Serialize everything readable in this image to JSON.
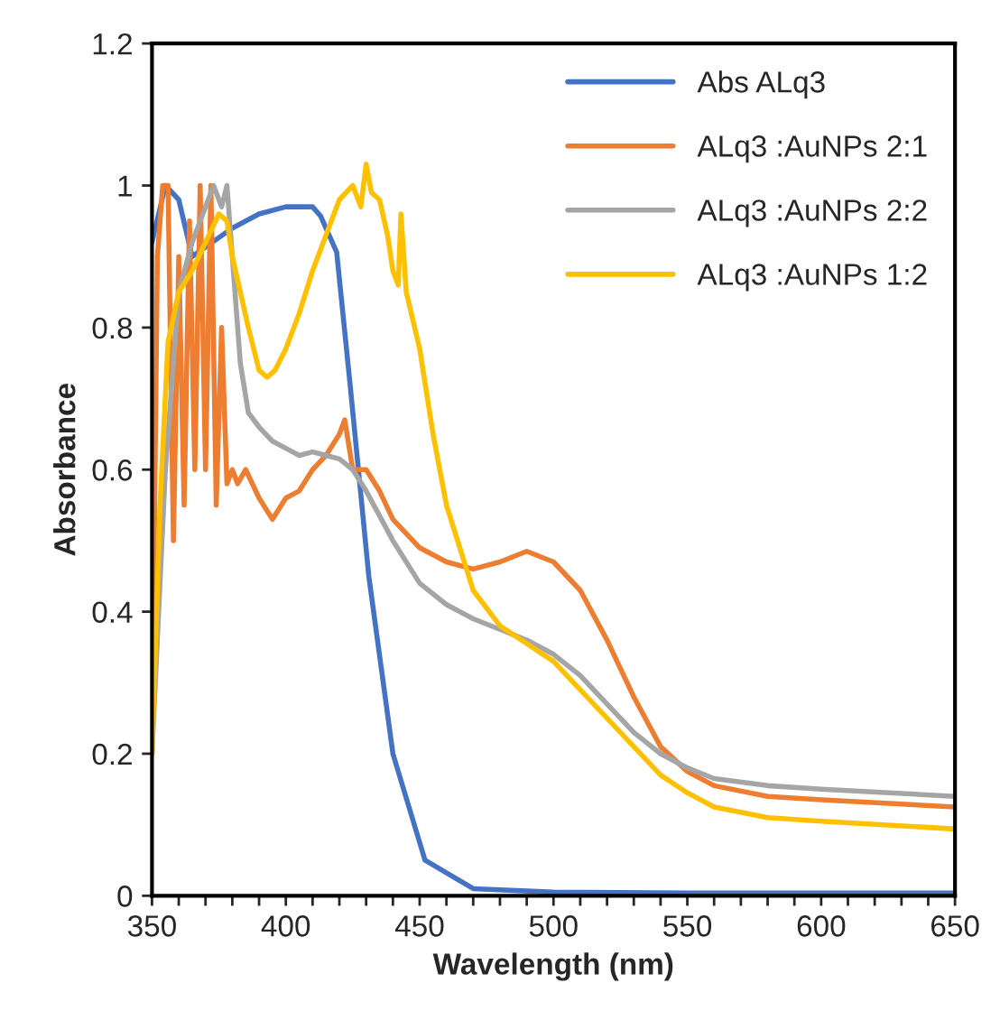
{
  "chart_data": {
    "type": "line",
    "xlabel": "Wavelength (nm)",
    "ylabel": "Absorbance",
    "xlim": [
      350,
      650
    ],
    "ylim": [
      0,
      1.2
    ],
    "xticks": [
      350,
      {
        "value": 360,
        "label": null
      },
      {
        "value": 370,
        "label": null
      },
      {
        "value": 380,
        "label": null
      },
      {
        "value": 390,
        "label": null
      },
      400,
      {
        "value": 410,
        "label": null
      },
      {
        "value": 420,
        "label": null
      },
      {
        "value": 430,
        "label": null
      },
      {
        "value": 440,
        "label": null
      },
      450,
      {
        "value": 460,
        "label": null
      },
      {
        "value": 470,
        "label": null
      },
      {
        "value": 480,
        "label": null
      },
      {
        "value": 490,
        "label": null
      },
      500,
      {
        "value": 510,
        "label": null
      },
      {
        "value": 520,
        "label": null
      },
      {
        "value": 530,
        "label": null
      },
      {
        "value": 540,
        "label": null
      },
      550,
      {
        "value": 560,
        "label": null
      },
      {
        "value": 570,
        "label": null
      },
      {
        "value": 580,
        "label": null
      },
      {
        "value": 590,
        "label": null
      },
      600,
      {
        "value": 610,
        "label": null
      },
      {
        "value": 620,
        "label": null
      },
      {
        "value": 630,
        "label": null
      },
      {
        "value": 640,
        "label": null
      },
      650
    ],
    "yticks": [
      0,
      0.2,
      0.4,
      0.6,
      0.8,
      1,
      1.2
    ],
    "grid": false,
    "legend": "top right",
    "marker": "none",
    "line_style": "solid",
    "series": [
      {
        "name": "Abs ALq3",
        "color": "#4472c4",
        "x": [
          350,
          355,
          360,
          365,
          380,
          390,
          400,
          410,
          413,
          419,
          424,
          431,
          440,
          452,
          470,
          500,
          550,
          600,
          650
        ],
        "values": [
          0.92,
          1.0,
          0.98,
          0.9,
          0.94,
          0.96,
          0.97,
          0.97,
          0.957,
          0.906,
          0.72,
          0.45,
          0.2,
          0.05,
          0.01,
          0.005,
          0.004,
          0.004,
          0.004
        ]
      },
      {
        "name": "ALq3 :AuNPs 2:1",
        "color": "#ed7d31",
        "x": [
          350,
          352,
          354,
          356,
          358,
          360,
          362,
          364,
          366,
          368,
          370,
          372,
          374,
          376,
          378,
          380,
          382,
          385,
          390,
          395,
          400,
          405,
          410,
          415,
          420,
          422,
          425,
          430,
          435,
          440,
          450,
          460,
          470,
          480,
          490,
          500,
          510,
          520,
          530,
          540,
          550,
          560,
          580,
          600,
          650
        ],
        "values": [
          0.2,
          0.9,
          1.0,
          1.0,
          0.5,
          0.9,
          0.55,
          0.95,
          0.6,
          1.0,
          0.6,
          1.0,
          0.55,
          0.8,
          0.58,
          0.6,
          0.58,
          0.6,
          0.56,
          0.53,
          0.56,
          0.57,
          0.6,
          0.62,
          0.65,
          0.67,
          0.6,
          0.6,
          0.57,
          0.53,
          0.49,
          0.47,
          0.46,
          0.47,
          0.485,
          0.47,
          0.43,
          0.36,
          0.28,
          0.21,
          0.175,
          0.155,
          0.14,
          0.135,
          0.125
        ]
      },
      {
        "name": "ALq3 :AuNPs 2:2",
        "color": "#a5a5a5",
        "x": [
          350,
          355,
          360,
          365,
          370,
          373,
          376,
          378,
          380,
          383,
          386,
          390,
          395,
          400,
          405,
          410,
          415,
          420,
          425,
          430,
          440,
          450,
          460,
          470,
          480,
          490,
          500,
          510,
          520,
          530,
          540,
          550,
          560,
          580,
          600,
          650
        ],
        "values": [
          0.2,
          0.6,
          0.85,
          0.92,
          0.97,
          1.0,
          0.97,
          1.0,
          0.9,
          0.75,
          0.68,
          0.66,
          0.64,
          0.63,
          0.62,
          0.625,
          0.62,
          0.615,
          0.6,
          0.57,
          0.5,
          0.44,
          0.41,
          0.39,
          0.375,
          0.36,
          0.34,
          0.31,
          0.27,
          0.23,
          0.2,
          0.18,
          0.165,
          0.155,
          0.15,
          0.14
        ]
      },
      {
        "name": "ALq3 :AuNPs 1:2",
        "color": "#ffc000",
        "x": [
          350,
          353,
          356,
          360,
          365,
          370,
          375,
          378,
          380,
          383,
          386,
          390,
          393,
          396,
          400,
          405,
          410,
          415,
          420,
          425,
          428,
          430,
          432,
          435,
          438,
          440,
          442,
          443,
          445,
          450,
          455,
          460,
          470,
          480,
          490,
          500,
          510,
          520,
          530,
          540,
          550,
          560,
          580,
          600,
          650
        ],
        "values": [
          0.2,
          0.55,
          0.78,
          0.85,
          0.88,
          0.92,
          0.96,
          0.95,
          0.9,
          0.85,
          0.8,
          0.74,
          0.73,
          0.74,
          0.77,
          0.82,
          0.88,
          0.93,
          0.98,
          1.0,
          0.97,
          1.03,
          0.99,
          0.98,
          0.93,
          0.88,
          0.86,
          0.96,
          0.85,
          0.77,
          0.65,
          0.55,
          0.43,
          0.38,
          0.355,
          0.33,
          0.29,
          0.25,
          0.21,
          0.17,
          0.145,
          0.125,
          0.11,
          0.105,
          0.094
        ]
      }
    ]
  }
}
